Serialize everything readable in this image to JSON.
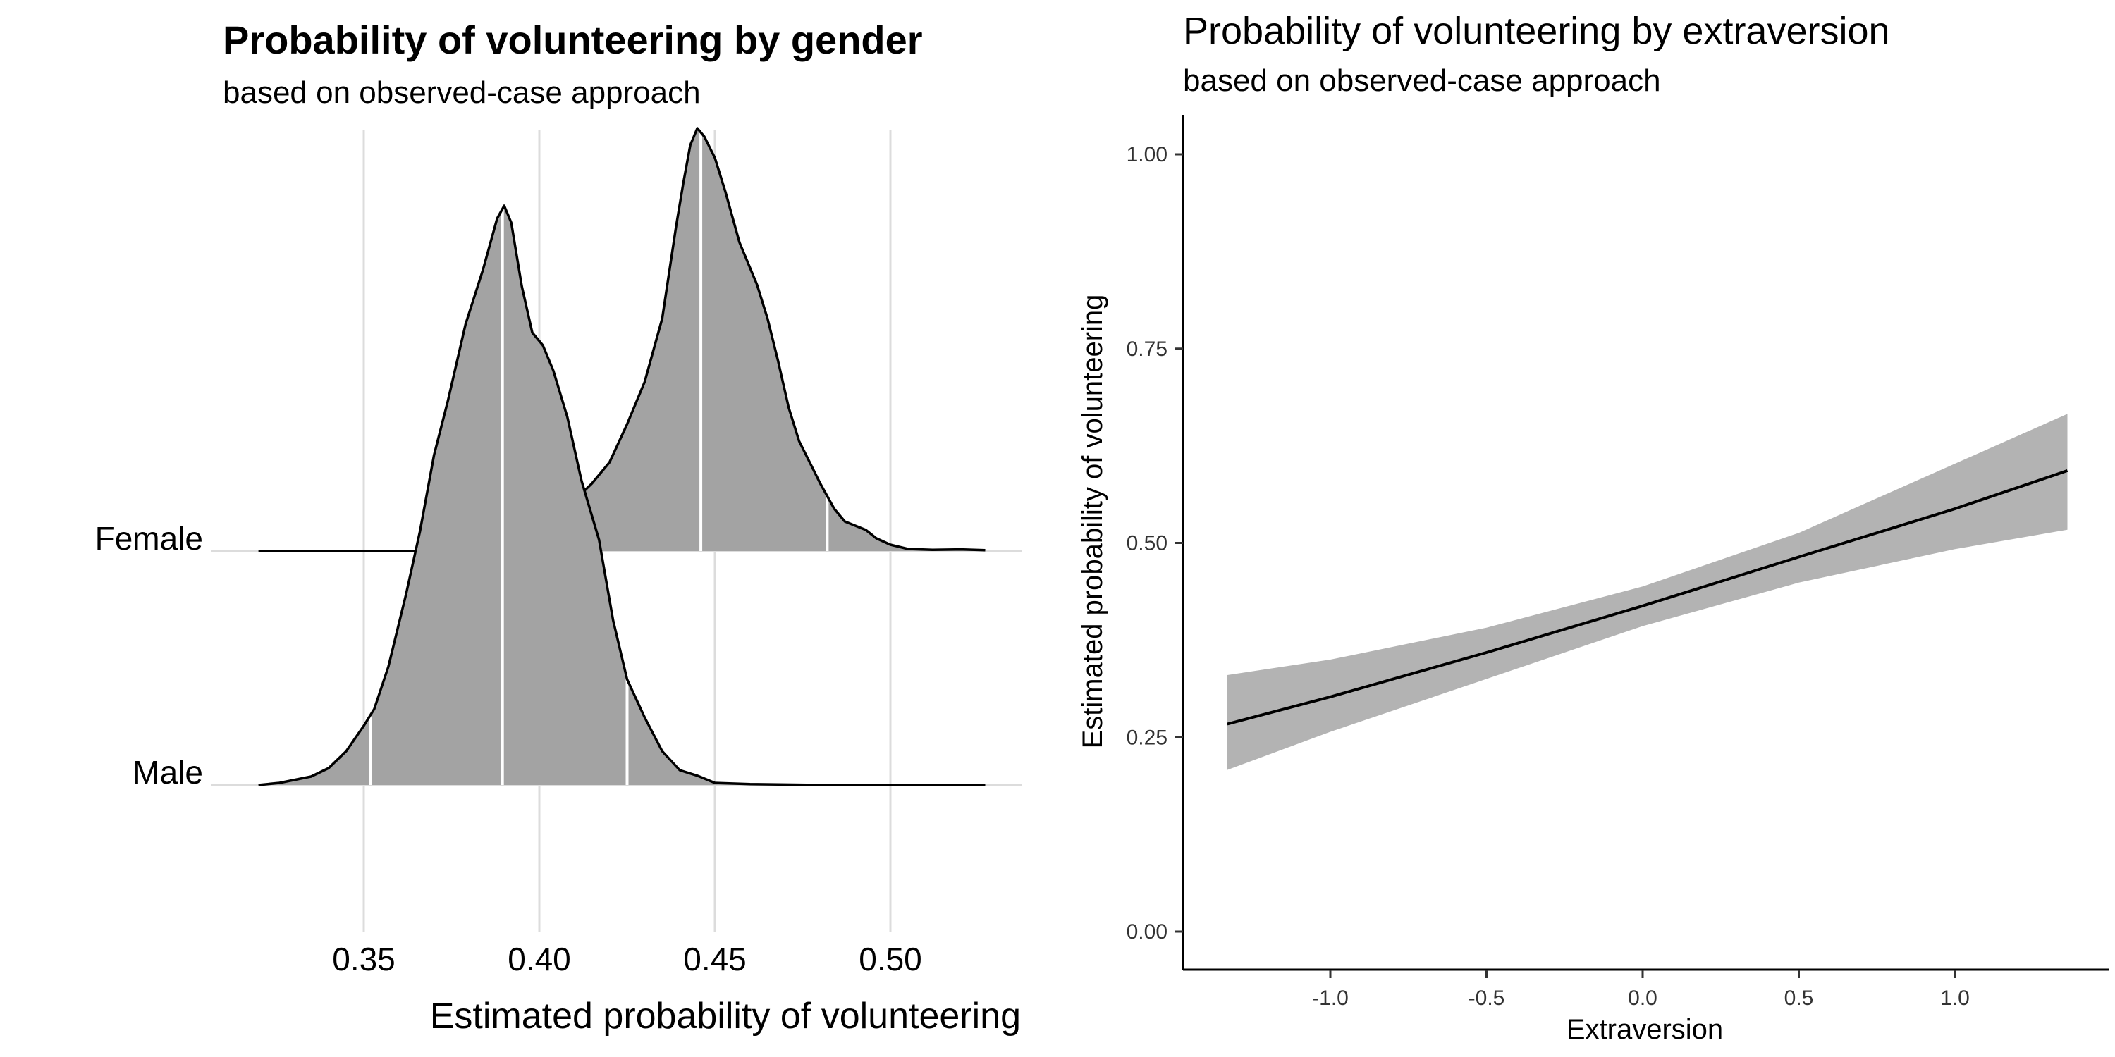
{
  "chart_data": [
    {
      "type": "density-ridges",
      "title": "Probability of volunteering by gender",
      "subtitle": "based on observed-case approach",
      "xlabel": "Estimated probability of volunteering",
      "ylabel": "",
      "xlim": [
        0.32,
        0.535
      ],
      "x_ticks": [
        0.35,
        0.4,
        0.45,
        0.5
      ],
      "x_tick_labels": [
        "0.35",
        "0.40",
        "0.45",
        "0.50"
      ],
      "vertical_grid": true,
      "fill_color": "#a3a3a3",
      "line_color": "#000000",
      "categories": [
        "Female",
        "Male"
      ],
      "series": [
        {
          "name": "Female",
          "quantile_lines": [
            0.4085,
            0.446,
            0.482
          ],
          "density": [
            [
              0.32,
              0
            ],
            [
              0.4,
              0
            ],
            [
              0.403,
              0.02
            ],
            [
              0.406,
              0.07
            ],
            [
              0.41,
              0.12
            ],
            [
              0.415,
              0.16
            ],
            [
              0.42,
              0.21
            ],
            [
              0.425,
              0.3
            ],
            [
              0.43,
              0.4
            ],
            [
              0.435,
              0.55
            ],
            [
              0.439,
              0.77
            ],
            [
              0.441,
              0.87
            ],
            [
              0.443,
              0.96
            ],
            [
              0.445,
              1.0
            ],
            [
              0.447,
              0.98
            ],
            [
              0.45,
              0.93
            ],
            [
              0.453,
              0.85
            ],
            [
              0.457,
              0.73
            ],
            [
              0.462,
              0.63
            ],
            [
              0.465,
              0.55
            ],
            [
              0.468,
              0.45
            ],
            [
              0.471,
              0.34
            ],
            [
              0.474,
              0.26
            ],
            [
              0.477,
              0.21
            ],
            [
              0.48,
              0.16
            ],
            [
              0.484,
              0.1
            ],
            [
              0.487,
              0.07
            ],
            [
              0.49,
              0.06
            ],
            [
              0.493,
              0.05
            ],
            [
              0.496,
              0.03
            ],
            [
              0.5,
              0.015
            ],
            [
              0.505,
              0.005
            ],
            [
              0.512,
              0.003
            ],
            [
              0.52,
              0.004
            ],
            [
              0.527,
              0.002
            ]
          ]
        },
        {
          "name": "Male",
          "quantile_lines": [
            0.352,
            0.3895,
            0.425
          ],
          "density": [
            [
              0.32,
              0
            ],
            [
              0.326,
              0.005
            ],
            [
              0.335,
              0.02
            ],
            [
              0.34,
              0.04
            ],
            [
              0.345,
              0.08
            ],
            [
              0.35,
              0.14
            ],
            [
              0.353,
              0.18
            ],
            [
              0.357,
              0.28
            ],
            [
              0.362,
              0.45
            ],
            [
              0.366,
              0.6
            ],
            [
              0.37,
              0.78
            ],
            [
              0.374,
              0.91
            ],
            [
              0.379,
              1.09
            ],
            [
              0.384,
              1.22
            ],
            [
              0.388,
              1.34
            ],
            [
              0.39,
              1.37
            ],
            [
              0.392,
              1.33
            ],
            [
              0.395,
              1.18
            ],
            [
              0.398,
              1.07
            ],
            [
              0.401,
              1.04
            ],
            [
              0.404,
              0.98
            ],
            [
              0.408,
              0.87
            ],
            [
              0.412,
              0.72
            ],
            [
              0.417,
              0.58
            ],
            [
              0.421,
              0.39
            ],
            [
              0.425,
              0.25
            ],
            [
              0.43,
              0.16
            ],
            [
              0.435,
              0.08
            ],
            [
              0.44,
              0.035
            ],
            [
              0.445,
              0.022
            ],
            [
              0.45,
              0.005
            ],
            [
              0.46,
              0.002
            ],
            [
              0.48,
              0
            ],
            [
              0.527,
              0
            ]
          ]
        }
      ]
    },
    {
      "type": "line",
      "title": "Probability of volunteering by extraversion",
      "subtitle": "based on observed-case approach",
      "xlabel": "Extraversion",
      "ylabel": "Estimated probability of volunteering",
      "xlim": [
        -1.47,
        1.48
      ],
      "ylim": [
        -0.05,
        1.05
      ],
      "x_ticks": [
        -1.0,
        -0.5,
        0.0,
        0.5,
        1.0
      ],
      "x_tick_labels": [
        "-1.0",
        "-0.5",
        "0.0",
        "0.5",
        "1.0"
      ],
      "y_ticks": [
        0.0,
        0.25,
        0.5,
        0.75,
        1.0
      ],
      "y_tick_labels": [
        "0.00",
        "0.25",
        "0.50",
        "0.75",
        "1.00"
      ],
      "grid": false,
      "line_color": "#000000",
      "band_color": "#b3b3b3",
      "x": [
        -1.33,
        -1.0,
        -0.5,
        0.0,
        0.5,
        1.0,
        1.36
      ],
      "y": [
        0.267,
        0.302,
        0.359,
        0.419,
        0.482,
        0.544,
        0.593
      ],
      "lower": [
        0.208,
        0.257,
        0.325,
        0.393,
        0.449,
        0.492,
        0.517
      ],
      "upper": [
        0.33,
        0.35,
        0.391,
        0.444,
        0.513,
        0.602,
        0.666
      ]
    }
  ]
}
